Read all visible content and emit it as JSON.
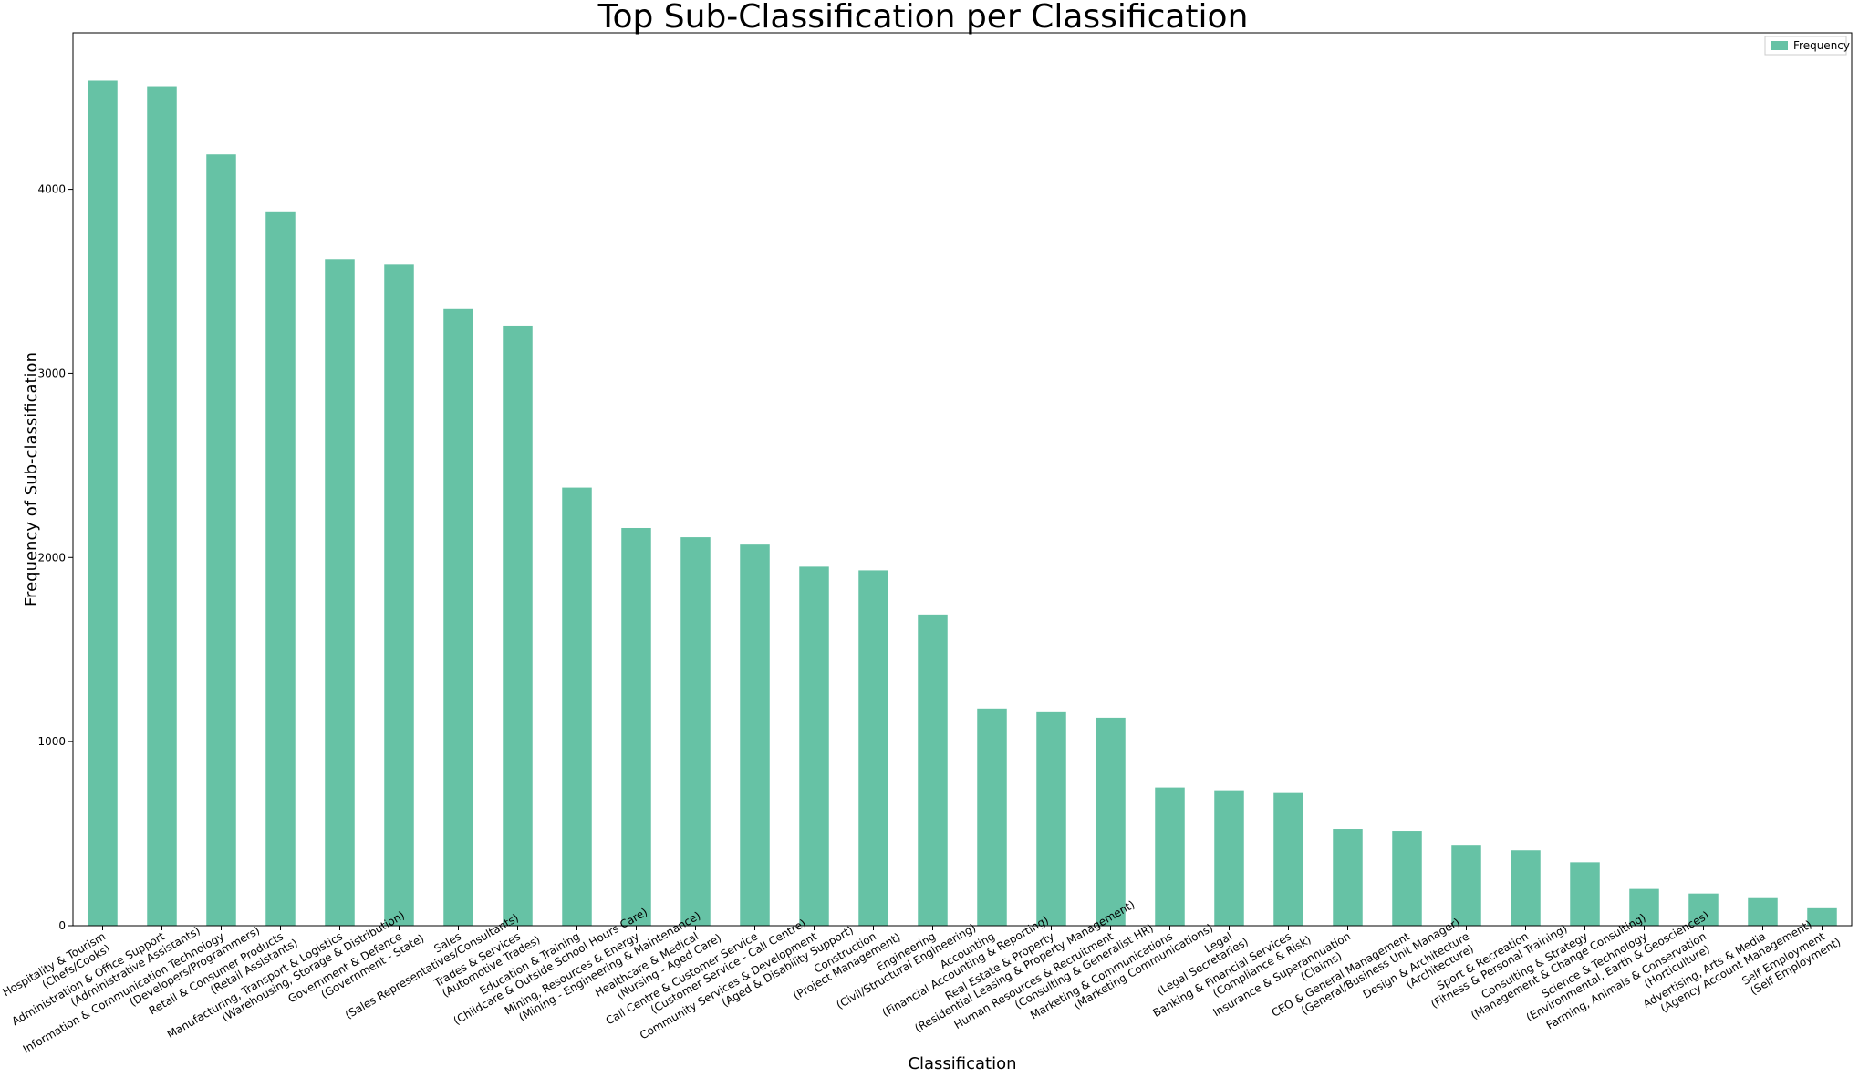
{
  "chart_data": {
    "type": "bar",
    "title": "Top Sub-Classification per Classification",
    "xlabel": "Classification",
    "ylabel": "Frequency of Sub-classification",
    "ylim": [
      0,
      4850
    ],
    "yticks": [
      0,
      1000,
      2000,
      3000,
      4000
    ],
    "grid": false,
    "legend": {
      "placement": "top-right",
      "entries": [
        "Frequency"
      ]
    },
    "bar_color": "#66c2a5",
    "categories": [
      [
        "Hospitality & Tourism",
        "(Chefs/Cooks)"
      ],
      [
        "Administration & Office Support",
        "(Administrative Assistants)"
      ],
      [
        "Information & Communication Technology",
        "(Developers/Programmers)"
      ],
      [
        "Retail & Consumer Products",
        "(Retail Assistants)"
      ],
      [
        "Manufacturing, Transport & Logistics",
        "(Warehousing, Storage & Distribution)"
      ],
      [
        "Government & Defence",
        "(Government - State)"
      ],
      [
        "Sales",
        "(Sales Representatives/Consultants)"
      ],
      [
        "Trades & Services",
        "(Automotive Trades)"
      ],
      [
        "Education & Training",
        "(Childcare & Outside School Hours Care)"
      ],
      [
        "Mining, Resources & Energy",
        "(Mining - Engineering & Maintenance)"
      ],
      [
        "Healthcare & Medical",
        "(Nursing - Aged Care)"
      ],
      [
        "Call Centre & Customer Service",
        "(Customer Service - Call Centre)"
      ],
      [
        "Community Services & Development",
        "(Aged & Disability Support)"
      ],
      [
        "Construction",
        "(Project Management)"
      ],
      [
        "Engineering",
        "(Civil/Structural Engineering)"
      ],
      [
        "Accounting",
        "(Financial Accounting & Reporting)"
      ],
      [
        "Real Estate & Property",
        "(Residential Leasing & Property Management)"
      ],
      [
        "Human Resources & Recruitment",
        "(Consulting & Generalist HR)"
      ],
      [
        "Marketing & Communications",
        "(Marketing Communications)"
      ],
      [
        "Legal",
        "(Legal Secretaries)"
      ],
      [
        "Banking & Financial Services",
        "(Compliance & Risk)"
      ],
      [
        "Insurance & Superannuation",
        "(Claims)"
      ],
      [
        "CEO & General Management",
        "(General/Business Unit Manager)"
      ],
      [
        "Design & Architecture",
        "(Architecture)"
      ],
      [
        "Sport & Recreation",
        "(Fitness & Personal Training)"
      ],
      [
        "Consulting & Strategy",
        "(Management & Change Consulting)"
      ],
      [
        "Science & Technology",
        "(Environmental, Earth & Geosciences)"
      ],
      [
        "Farming, Animals & Conservation",
        "(Horticulture)"
      ],
      [
        "Advertising, Arts & Media",
        "(Agency Account Management)"
      ],
      [
        "Self Employment",
        "(Self Employment)"
      ]
    ],
    "series": [
      {
        "name": "Frequency",
        "values": [
          4590,
          4560,
          4190,
          3880,
          3620,
          3590,
          3350,
          3260,
          2380,
          2160,
          2110,
          2070,
          1950,
          1930,
          1690,
          1180,
          1160,
          1130,
          750,
          735,
          725,
          525,
          515,
          435,
          410,
          345,
          200,
          175,
          150,
          95
        ]
      }
    ]
  }
}
